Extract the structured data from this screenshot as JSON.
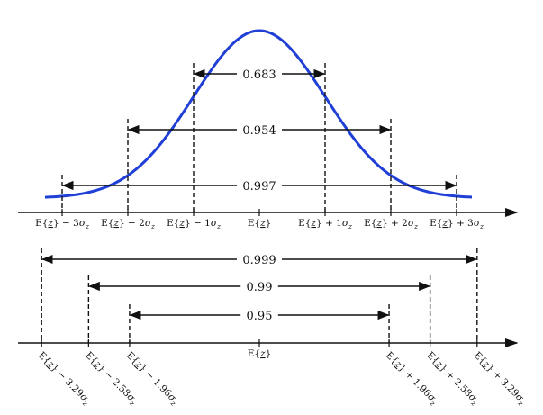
{
  "colors": {
    "curve": "#1f3fd6",
    "ink": "#111111",
    "background": "#ffffff"
  },
  "top": {
    "ticks": [
      {
        "k": -3,
        "label": "E{z} − 3σz"
      },
      {
        "k": -2,
        "label": "E{z} − 2σz"
      },
      {
        "k": -1,
        "label": "E{z} − 1σz"
      },
      {
        "k": 0,
        "label": "E{z}"
      },
      {
        "k": 1,
        "label": "E{z} + 1σz"
      },
      {
        "k": 2,
        "label": "E{z} + 2σz"
      },
      {
        "k": 3,
        "label": "E{z} + 3σz"
      }
    ],
    "intervals": [
      {
        "k": 1,
        "prob": "0.683"
      },
      {
        "k": 2,
        "prob": "0.954"
      },
      {
        "k": 3,
        "prob": "0.997"
      }
    ]
  },
  "bottom": {
    "center_label": "E{z}",
    "ticks": [
      {
        "k": -3.29,
        "label": "E{z} − 3.29σz"
      },
      {
        "k": -2.58,
        "label": "E{z} − 2.58σz"
      },
      {
        "k": -1.96,
        "label": "E{z} − 1.96σz"
      },
      {
        "k": 1.96,
        "label": "E{z} + 1.96σz"
      },
      {
        "k": 2.58,
        "label": "E{z} + 2.58σz"
      },
      {
        "k": 3.29,
        "label": "E{z} + 3.29σz"
      }
    ],
    "intervals": [
      {
        "k": 3.29,
        "prob": "0.999"
      },
      {
        "k": 2.58,
        "prob": "0.99"
      },
      {
        "k": 1.96,
        "prob": "0.95"
      }
    ]
  }
}
